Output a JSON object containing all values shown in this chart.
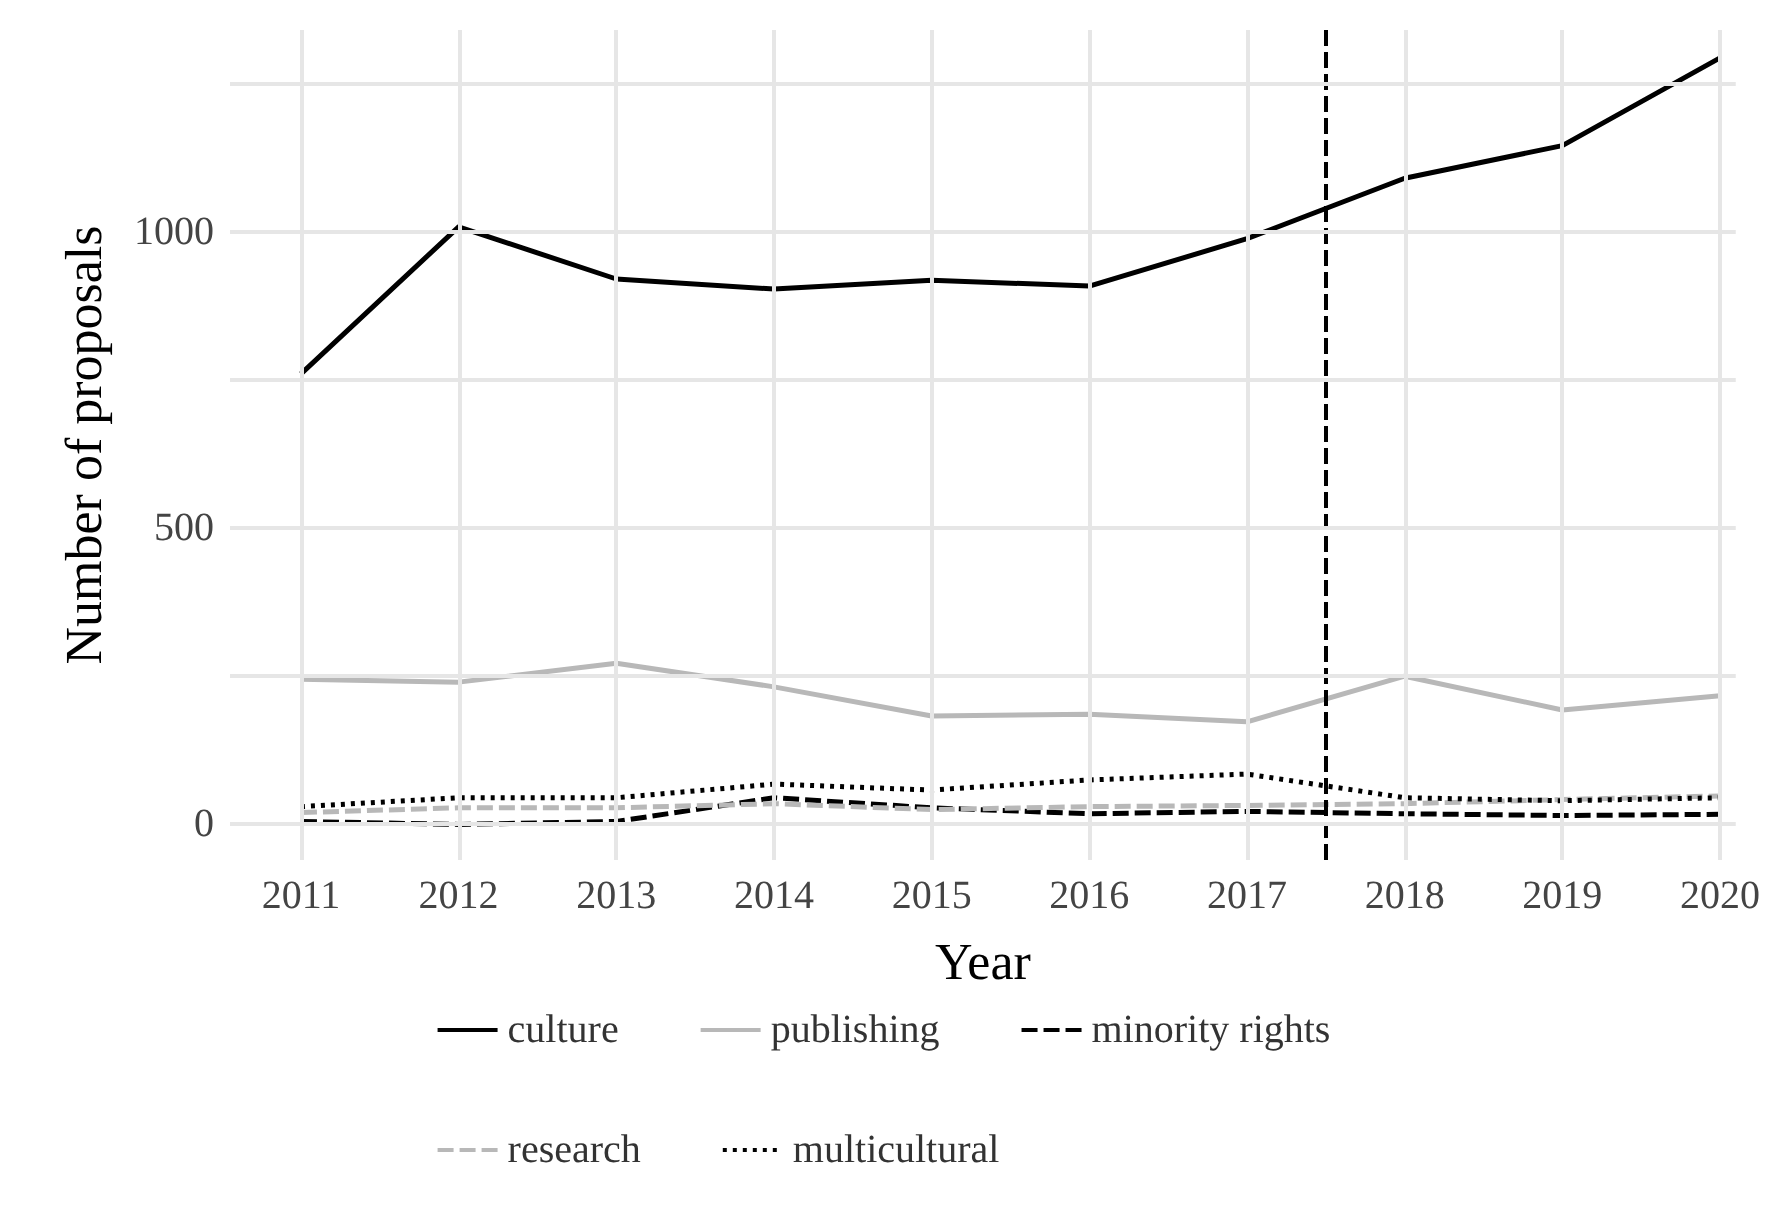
{
  "chart_data": {
    "type": "line",
    "xlabel": "Year",
    "ylabel": "Number of proposals",
    "x": [
      2011,
      2012,
      2013,
      2014,
      2015,
      2016,
      2017,
      2018,
      2019,
      2020
    ],
    "xlim": [
      2010.55,
      2020.1
    ],
    "xticks": [
      2011,
      2012,
      2013,
      2014,
      2015,
      2016,
      2017,
      2018,
      2019,
      2020
    ],
    "ylim": [
      -60,
      1340
    ],
    "yticks": [
      0,
      {
        "value": 250,
        "label": null
      },
      500,
      {
        "value": 750,
        "label": null
      },
      1000,
      {
        "value": 1250,
        "label": null
      }
    ],
    "grid": true,
    "legend": "bottom",
    "marker": "none",
    "series": [
      {
        "name": "culture",
        "color": "#000000",
        "line_style": "solid",
        "values": [
          760,
          1008,
          920,
          903,
          918,
          908,
          988,
          1090,
          1145,
          1293
        ]
      },
      {
        "name": "publishing",
        "color": "#b8b8b8",
        "line_style": "solid",
        "values": [
          245,
          240,
          272,
          232,
          183,
          186,
          173,
          250,
          193,
          217
        ]
      },
      {
        "name": "minority rights",
        "color": "#000000",
        "line_style": "dashed",
        "values": [
          5,
          0,
          5,
          45,
          28,
          18,
          22,
          18,
          15,
          17
        ]
      },
      {
        "name": "research",
        "color": "#b8b8b8",
        "line_style": "dashed",
        "values": [
          20,
          28,
          28,
          35,
          25,
          30,
          32,
          35,
          42,
          48
        ]
      },
      {
        "name": "multicultural",
        "color": "#000000",
        "line_style": "dotted",
        "values": [
          30,
          45,
          45,
          68,
          58,
          75,
          85,
          45,
          40,
          45
        ]
      }
    ],
    "ref_lines": [
      {
        "axis": "x",
        "value": 2017.5,
        "color": "#000000",
        "line_style": "dashed"
      }
    ]
  }
}
